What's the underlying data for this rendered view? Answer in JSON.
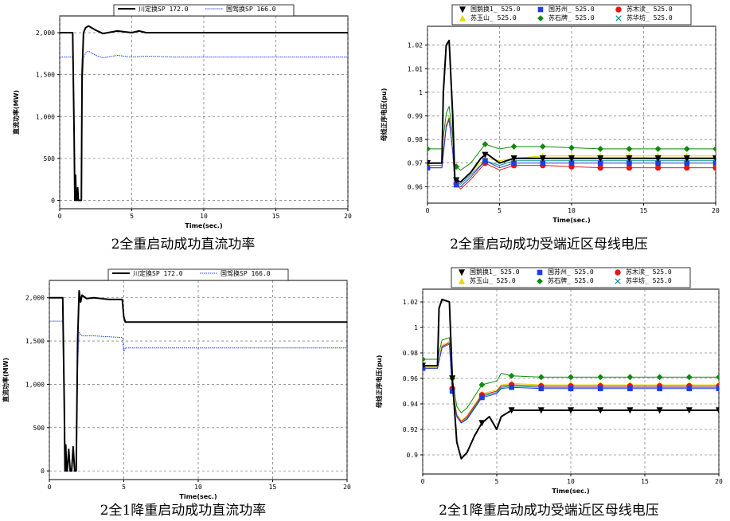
{
  "chart_data": [
    {
      "type": "line",
      "caption": "2全重启动成功直流功率",
      "xlabel": "Time(sec.)",
      "ylabel": "直流功率(MW)",
      "xlim": [
        0,
        20
      ],
      "ylim": [
        -100,
        2200
      ],
      "xticks": [
        "0",
        "5",
        "10",
        "15",
        "20"
      ],
      "xtick_values": [
        0,
        5,
        10,
        15,
        20
      ],
      "yticks": [
        "0",
        "500",
        "1,000",
        "1,500",
        "2,000"
      ],
      "ytick_values": [
        0,
        500,
        1000,
        1500,
        2000
      ],
      "grid": true,
      "legend_position": "top",
      "series": [
        {
          "name": "川定换SP 172.0",
          "color": "#000000",
          "style": "solid",
          "width": 2,
          "marker": "none",
          "x": [
            0,
            0.9,
            1.0,
            1.05,
            1.1,
            1.15,
            1.2,
            1.25,
            1.3,
            1.5,
            1.55,
            1.65,
            1.8,
            2.0,
            2.5,
            3,
            4,
            5,
            5.5,
            6,
            8,
            20
          ],
          "y": [
            2000,
            2000,
            800,
            0,
            300,
            0,
            0,
            150,
            0,
            0,
            1500,
            2000,
            2060,
            2080,
            2030,
            1990,
            2020,
            2000,
            2020,
            2000,
            2000,
            2000
          ]
        },
        {
          "name": "国驾换SP 166.0",
          "color": "#1f3ee0",
          "style": "dotted",
          "width": 1,
          "marker": "none",
          "x": [
            0,
            0.9,
            1.0,
            1.05,
            1.5,
            1.55,
            1.65,
            1.8,
            2.0,
            2.5,
            3,
            4,
            5,
            6,
            8,
            20
          ],
          "y": [
            1710,
            1710,
            700,
            0,
            0,
            1300,
            1700,
            1760,
            1780,
            1730,
            1700,
            1730,
            1710,
            1720,
            1710,
            1710
          ]
        }
      ]
    },
    {
      "type": "line",
      "caption": "2全重启动成功受端近区母线电压",
      "xlabel": "Time(sec.)",
      "ylabel": "母线正序电压(pu)",
      "xlim": [
        0,
        20
      ],
      "ylim": [
        0.953,
        1.028
      ],
      "xticks": [
        "0",
        "5",
        "10",
        "15",
        "20"
      ],
      "xtick_values": [
        0,
        5,
        10,
        15,
        20
      ],
      "yticks": [
        "0.96",
        "0.97",
        "0.98",
        "0.99",
        "1",
        "1.01",
        "1.02"
      ],
      "ytick_values": [
        0.96,
        0.97,
        0.98,
        0.99,
        1.0,
        1.01,
        1.02
      ],
      "grid": true,
      "legend_position": "top",
      "series": [
        {
          "name": "国鹅换1_ 525.0",
          "color": "#000000",
          "style": "solid",
          "width": 2,
          "marker": "triangle-down",
          "x": [
            0,
            1,
            1.1,
            1.3,
            1.5,
            1.75,
            1.9,
            2.3,
            3,
            3.7,
            4.1,
            5,
            6,
            8,
            12,
            20
          ],
          "y": [
            0.97,
            0.97,
            1.0,
            1.02,
            1.022,
            0.99,
            0.963,
            0.962,
            0.966,
            0.972,
            0.974,
            0.97,
            0.972,
            0.972,
            0.972,
            0.972
          ]
        },
        {
          "name": "国苏州_ 525.0",
          "color": "#1f3ee0",
          "style": "solid",
          "width": 1,
          "marker": "square",
          "x": [
            0,
            1,
            1.3,
            1.5,
            1.75,
            1.9,
            2.3,
            3,
            4,
            5,
            6,
            8,
            12,
            20
          ],
          "y": [
            0.968,
            0.968,
            0.985,
            0.989,
            0.975,
            0.961,
            0.96,
            0.964,
            0.971,
            0.968,
            0.97,
            0.97,
            0.97,
            0.97
          ]
        },
        {
          "name": "苏木渎_ 525.0",
          "color": "#e01818",
          "style": "solid",
          "width": 1,
          "marker": "circle",
          "x": [
            0,
            1,
            1.3,
            1.5,
            1.75,
            1.9,
            2.3,
            3,
            4,
            5,
            6,
            8,
            12,
            20
          ],
          "y": [
            0.968,
            0.968,
            0.986,
            0.988,
            0.975,
            0.962,
            0.959,
            0.963,
            0.97,
            0.967,
            0.969,
            0.969,
            0.968,
            0.968
          ]
        },
        {
          "name": "苏玉山_ 525.0",
          "color": "#e8d800",
          "style": "solid",
          "width": 1,
          "marker": "triangle-up",
          "x": [
            0,
            1,
            1.3,
            1.5,
            1.75,
            1.9,
            2.3,
            3,
            4,
            5,
            6,
            8,
            12,
            20
          ],
          "y": [
            0.97,
            0.97,
            0.986,
            0.99,
            0.976,
            0.963,
            0.962,
            0.966,
            0.972,
            0.971,
            0.972,
            0.973,
            0.973,
            0.973
          ]
        },
        {
          "name": "苏石牌_ 525.0",
          "color": "#0f8a0f",
          "style": "solid",
          "width": 1,
          "marker": "diamond",
          "x": [
            0,
            1,
            1.3,
            1.5,
            1.75,
            1.9,
            2.3,
            3,
            4,
            5,
            6,
            8,
            12,
            20
          ],
          "y": [
            0.976,
            0.976,
            0.991,
            0.994,
            0.981,
            0.969,
            0.967,
            0.97,
            0.978,
            0.976,
            0.977,
            0.977,
            0.976,
            0.976
          ]
        },
        {
          "name": "苏华坊_ 525.0",
          "color": "#0c8f8f",
          "style": "solid",
          "width": 1,
          "marker": "x",
          "x": [
            0,
            1,
            1.3,
            1.5,
            1.75,
            1.9,
            2.3,
            3,
            4,
            5,
            6,
            8,
            12,
            20
          ],
          "y": [
            0.969,
            0.969,
            0.986,
            0.989,
            0.975,
            0.962,
            0.961,
            0.965,
            0.971,
            0.969,
            0.971,
            0.971,
            0.971,
            0.971
          ]
        }
      ]
    },
    {
      "type": "line",
      "caption": "2全1降重启动成功直流功率",
      "xlabel": "Time(sec.)",
      "ylabel": "直流功率(MW)",
      "xlim": [
        0,
        20
      ],
      "ylim": [
        -100,
        2200
      ],
      "xticks": [
        "0",
        "5",
        "10",
        "15",
        "20"
      ],
      "xtick_values": [
        0,
        5,
        10,
        15,
        20
      ],
      "yticks": [
        "0",
        "500",
        "1,000",
        "1,500",
        "2,000"
      ],
      "ytick_values": [
        0,
        500,
        1000,
        1500,
        2000
      ],
      "grid": true,
      "legend_position": "top",
      "series": [
        {
          "name": "川定换SP 172.0",
          "color": "#000000",
          "style": "solid",
          "width": 2,
          "marker": "none",
          "x": [
            0,
            0.9,
            1.0,
            1.05,
            1.1,
            1.15,
            1.2,
            1.3,
            1.4,
            1.5,
            1.6,
            1.7,
            1.8,
            1.9,
            2.0,
            2.1,
            2.2,
            2.5,
            3,
            4,
            4.9,
            5.0,
            5.1,
            20
          ],
          "y": [
            2000,
            2000,
            800,
            0,
            300,
            0,
            0,
            250,
            0,
            0,
            280,
            0,
            0,
            1500,
            2080,
            1950,
            2030,
            1990,
            2000,
            1980,
            1980,
            1780,
            1720,
            1720
          ]
        },
        {
          "name": "国驾换SP 166.0",
          "color": "#1f3ee0",
          "style": "dotted",
          "width": 1,
          "marker": "none",
          "x": [
            0,
            0.9,
            1.0,
            1.05,
            1.8,
            1.9,
            2.0,
            2.2,
            3,
            4,
            4.9,
            5.0,
            5.1,
            20
          ],
          "y": [
            1730,
            1730,
            700,
            0,
            0,
            1200,
            1600,
            1560,
            1560,
            1550,
            1540,
            1380,
            1420,
            1420
          ]
        }
      ]
    },
    {
      "type": "line",
      "caption": "2全1降重启动成功受端近区母线电压",
      "xlabel": "Time(sec.)",
      "ylabel": "母线正序电压(pu)",
      "xlim": [
        0,
        20
      ],
      "ylim": [
        0.885,
        1.03
      ],
      "xticks": [
        "0",
        "5",
        "10",
        "15",
        "20"
      ],
      "xtick_values": [
        0,
        5,
        10,
        15,
        20
      ],
      "yticks": [
        "0.9",
        "0.92",
        "0.94",
        "0.96",
        "0.98",
        "1",
        "1.02"
      ],
      "ytick_values": [
        0.9,
        0.92,
        0.94,
        0.96,
        0.98,
        1.0,
        1.02
      ],
      "grid": true,
      "legend_position": "top",
      "series": [
        {
          "name": "国鹅换1_ 525.0",
          "color": "#000000",
          "style": "solid",
          "width": 2,
          "marker": "triangle-down",
          "x": [
            0,
            1,
            1.1,
            1.3,
            1.8,
            2.0,
            2.3,
            2.6,
            3,
            3.5,
            4,
            4.5,
            5,
            5.3,
            6,
            7,
            8,
            10,
            20
          ],
          "y": [
            0.97,
            0.97,
            1.015,
            1.022,
            1.02,
            0.96,
            0.91,
            0.897,
            0.902,
            0.915,
            0.925,
            0.93,
            0.92,
            0.93,
            0.935,
            0.935,
            0.935,
            0.935,
            0.935
          ]
        },
        {
          "name": "国苏州_ 525.0",
          "color": "#1f3ee0",
          "style": "solid",
          "width": 1,
          "marker": "square",
          "x": [
            0,
            1,
            1.3,
            1.8,
            2.0,
            2.3,
            2.6,
            3,
            4,
            5,
            5.3,
            6,
            8,
            10,
            20
          ],
          "y": [
            0.968,
            0.968,
            0.984,
            0.987,
            0.95,
            0.93,
            0.925,
            0.928,
            0.945,
            0.948,
            0.952,
            0.953,
            0.952,
            0.952,
            0.952
          ]
        },
        {
          "name": "苏木渎_ 525.0",
          "color": "#e01818",
          "style": "solid",
          "width": 1,
          "marker": "circle",
          "x": [
            0,
            1,
            1.3,
            1.8,
            2.0,
            2.3,
            2.6,
            3,
            4,
            5,
            5.3,
            6,
            8,
            10,
            20
          ],
          "y": [
            0.968,
            0.968,
            0.985,
            0.988,
            0.952,
            0.931,
            0.926,
            0.93,
            0.947,
            0.95,
            0.954,
            0.955,
            0.954,
            0.954,
            0.954
          ]
        },
        {
          "name": "苏玉山_ 525.0",
          "color": "#e8d800",
          "style": "solid",
          "width": 1,
          "marker": "triangle-up",
          "x": [
            0,
            1,
            1.3,
            1.8,
            2.0,
            2.3,
            2.6,
            3,
            4,
            5,
            5.3,
            6,
            8,
            10,
            20
          ],
          "y": [
            0.969,
            0.969,
            0.986,
            0.989,
            0.953,
            0.932,
            0.927,
            0.931,
            0.948,
            0.951,
            0.955,
            0.956,
            0.955,
            0.955,
            0.955
          ]
        },
        {
          "name": "苏石牌_ 525.0",
          "color": "#0f8a0f",
          "style": "solid",
          "width": 1,
          "marker": "diamond",
          "x": [
            0,
            1,
            1.3,
            1.8,
            2.0,
            2.3,
            2.6,
            3,
            4,
            5,
            5.3,
            6,
            8,
            10,
            20
          ],
          "y": [
            0.975,
            0.975,
            0.99,
            0.992,
            0.96,
            0.938,
            0.933,
            0.937,
            0.955,
            0.958,
            0.964,
            0.962,
            0.961,
            0.961,
            0.961
          ]
        },
        {
          "name": "苏华坊_ 525.0",
          "color": "#0c8f8f",
          "style": "solid",
          "width": 1,
          "marker": "x",
          "x": [
            0,
            1,
            1.3,
            1.8,
            2.0,
            2.3,
            2.6,
            3,
            4,
            5,
            5.3,
            6,
            8,
            10,
            20
          ],
          "y": [
            0.968,
            0.968,
            0.985,
            0.988,
            0.951,
            0.93,
            0.925,
            0.929,
            0.946,
            0.949,
            0.953,
            0.954,
            0.953,
            0.953,
            0.953
          ]
        }
      ]
    }
  ]
}
